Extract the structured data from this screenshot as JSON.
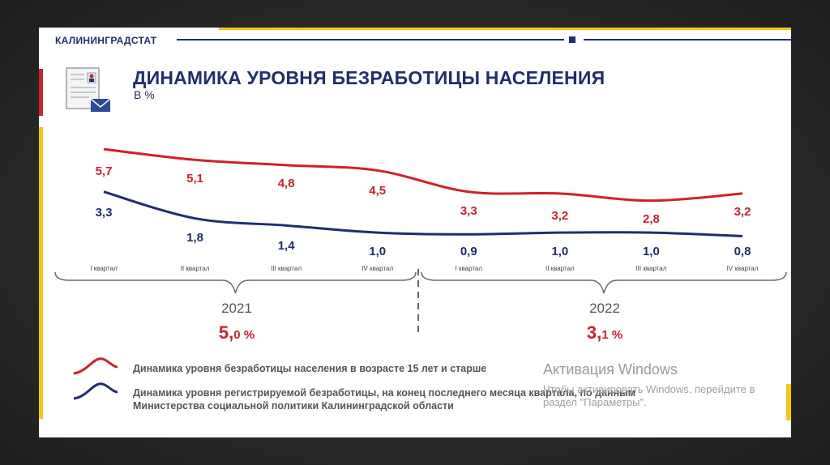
{
  "header": {
    "org_name": "КАЛИНИНГРАДСТАТ",
    "title": "ДИНАМИКА УРОВНЯ БЕЗРАБОТИЦЫ НАСЕЛЕНИЯ",
    "subtitle": "В %"
  },
  "colors": {
    "navy": "#1f2f6e",
    "red": "#d0202a",
    "yellow": "#f5c518"
  },
  "chart_data": {
    "type": "line",
    "categories": [
      "I квартал",
      "II квартал",
      "III квартал",
      "IV квартал",
      "I квартал",
      "II квартал",
      "III квартал",
      "IV квартал"
    ],
    "series": [
      {
        "name": "Динамика уровня безработицы населения в возрасте 15 лет и старше",
        "values": [
          5.7,
          5.1,
          4.8,
          4.5,
          3.3,
          3.2,
          2.8,
          3.2
        ],
        "labels": [
          "5,7",
          "5,1",
          "4,8",
          "4,5",
          "3,3",
          "3,2",
          "2,8",
          "3,2"
        ],
        "color": "#d0202a"
      },
      {
        "name": "Динамика уровня регистрируемой безработицы, на конец последнего месяца квартала, по данным Министерства социальной политики Калининградской области",
        "values": [
          3.3,
          1.8,
          1.4,
          1.0,
          0.9,
          1.0,
          1.0,
          0.8
        ],
        "labels": [
          "3,3",
          "1,8",
          "1,4",
          "1,0",
          "0,9",
          "1,0",
          "1,0",
          "0,8"
        ],
        "color": "#1f2f6e"
      }
    ],
    "groups": [
      {
        "year": "2021",
        "avg_main": "5,",
        "avg_small": "0 %"
      },
      {
        "year": "2022",
        "avg_main": "3,",
        "avg_small": "1 %"
      }
    ]
  },
  "legend": {
    "item1": "Динамика уровня безработицы населения в возрасте 15 лет и старше",
    "item2_line1": "Динамика уровня регистрируемой безработицы, на конец последнего месяца квартала, по данным",
    "item2_line2": "Министерства социальной политики Калининградской области"
  },
  "watermark": {
    "title": "Активация Windows",
    "line1": "Чтобы активировать Windows, перейдите в",
    "line2": "раздел \"Параметры\"."
  }
}
